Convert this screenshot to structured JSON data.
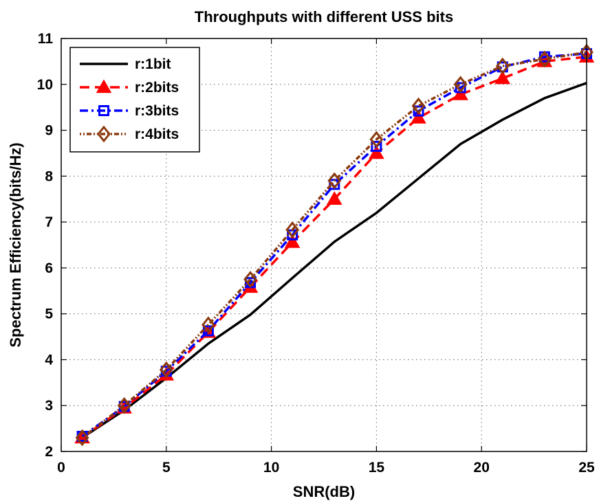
{
  "chart_data": {
    "type": "line",
    "title": "Throughputs with different  USS bits",
    "xlabel": "SNR(dB)",
    "ylabel": "Spectrum Efficiency(bits/Hz)",
    "xlim": [
      0,
      25
    ],
    "ylim": [
      2,
      11
    ],
    "xticks": [
      "0",
      "5",
      "10",
      "15",
      "20",
      "25"
    ],
    "yticks": [
      "2",
      "3",
      "4",
      "5",
      "6",
      "7",
      "8",
      "9",
      "10",
      "11"
    ],
    "grid": true,
    "legend_position": "top-left",
    "series": [
      {
        "name": "r:1bit",
        "color": "#000000",
        "line_style": "solid",
        "marker": "none",
        "x": [
          1,
          3,
          5,
          7,
          9,
          11,
          13,
          15,
          17,
          19,
          21,
          23,
          25
        ],
        "y": [
          2.3,
          2.9,
          3.6,
          4.35,
          4.98,
          5.78,
          6.57,
          7.2,
          7.95,
          8.7,
          9.23,
          9.7,
          10.03
        ]
      },
      {
        "name": "r:2bits",
        "color": "#ff0000",
        "line_style": "dashed",
        "marker": "triangle",
        "x": [
          1,
          3,
          5,
          7,
          9,
          11,
          13,
          15,
          17,
          19,
          21,
          23,
          25
        ],
        "y": [
          2.3,
          2.95,
          3.67,
          4.6,
          5.58,
          6.56,
          7.5,
          8.5,
          9.27,
          9.78,
          10.13,
          10.5,
          10.6
        ]
      },
      {
        "name": "r:3bits",
        "color": "#0000ff",
        "line_style": "dashdot",
        "marker": "square",
        "x": [
          1,
          3,
          5,
          7,
          9,
          11,
          13,
          15,
          17,
          19,
          21,
          23,
          25
        ],
        "y": [
          2.33,
          2.98,
          3.75,
          4.63,
          5.68,
          6.72,
          7.82,
          8.65,
          9.42,
          9.93,
          10.38,
          10.6,
          10.67
        ]
      },
      {
        "name": "r:4bits",
        "color": "#8b3a0e",
        "line_style": "dotted",
        "marker": "diamond",
        "x": [
          1,
          3,
          5,
          7,
          9,
          11,
          13,
          15,
          17,
          19,
          21,
          23,
          25
        ],
        "y": [
          2.3,
          3.0,
          3.78,
          4.76,
          5.75,
          6.83,
          7.9,
          8.8,
          9.53,
          10.0,
          10.4,
          10.55,
          10.7
        ]
      }
    ]
  }
}
